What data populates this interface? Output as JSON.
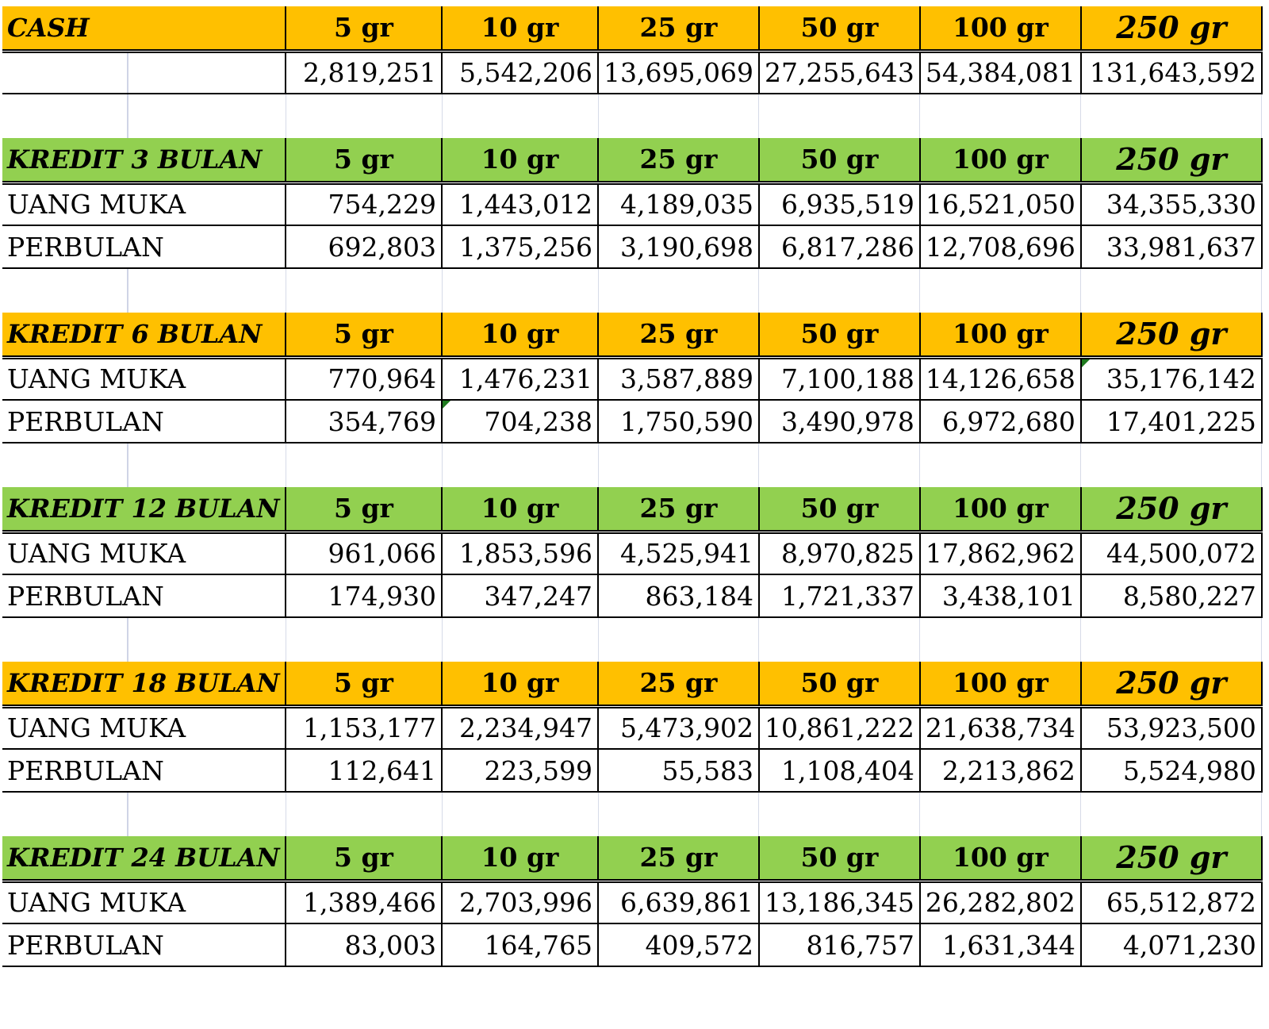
{
  "weights": [
    "5 gr",
    "10 gr",
    "25 gr",
    "50 gr",
    "100 gr",
    "250 gr"
  ],
  "cash": {
    "label": "CASH",
    "values": [
      "2,819,251",
      "5,542,206",
      "13,695,069",
      "27,255,643",
      "54,384,081",
      "131,643,592"
    ]
  },
  "row_labels": {
    "down_payment": "UANG MUKA",
    "monthly": "PERBULAN"
  },
  "credit_blocks": [
    {
      "label": "KREDIT 3 BULAN",
      "header_color": "#92d050",
      "down_payment": [
        "754,229",
        "1,443,012",
        "4,189,035",
        "6,935,519",
        "16,521,050",
        "34,355,330"
      ],
      "monthly": [
        "692,803",
        "1,375,256",
        "3,190,698",
        "6,817,286",
        "12,708,696",
        "33,981,637"
      ]
    },
    {
      "label": "KREDIT 6 BULAN",
      "header_color": "#ffc000",
      "down_payment": [
        "770,964",
        "1,476,231",
        "3,587,889",
        "7,100,188",
        "14,126,658",
        "35,176,142"
      ],
      "monthly": [
        "354,769",
        "704,238",
        "1,750,590",
        "3,490,978",
        "6,972,680",
        "17,401,225"
      ]
    },
    {
      "label": "KREDIT 12 BULAN",
      "header_color": "#92d050",
      "down_payment": [
        "961,066",
        "1,853,596",
        "4,525,941",
        "8,970,825",
        "17,862,962",
        "44,500,072"
      ],
      "monthly": [
        "174,930",
        "347,247",
        "863,184",
        "1,721,337",
        "3,438,101",
        "8,580,227"
      ]
    },
    {
      "label": "KREDIT 18 BULAN",
      "header_color": "#ffc000",
      "down_payment": [
        "1,153,177",
        "2,234,947",
        "5,473,902",
        "10,861,222",
        "21,638,734",
        "53,923,500"
      ],
      "monthly": [
        "112,641",
        "223,599",
        "55,583",
        "1,108,404",
        "2,213,862",
        "5,524,980"
      ]
    },
    {
      "label": "KREDIT 24 BULAN",
      "header_color": "#92d050",
      "down_payment": [
        "1,389,466",
        "2,703,996",
        "6,639,861",
        "13,186,345",
        "26,282,802",
        "65,512,872"
      ],
      "monthly": [
        "83,003",
        "164,765",
        "409,572",
        "816,757",
        "1,631,344",
        "4,071,230"
      ]
    }
  ],
  "colors": {
    "orange_header": "#ffc000",
    "green_header": "#92d050",
    "comment_marker": "#1f7a1f"
  }
}
